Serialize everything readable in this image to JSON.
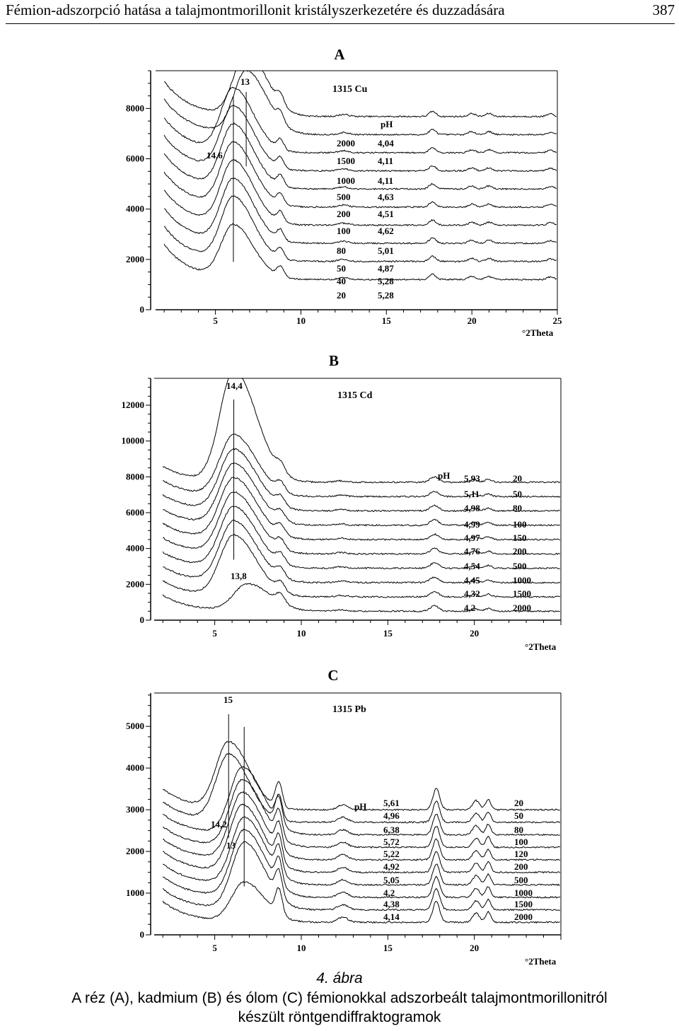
{
  "header": {
    "title": "Fémion-adszorpció hatása a talajmontmorillonit kristályszerkezetére és duzzadására",
    "page_number": "387"
  },
  "chart_data": [
    {
      "type": "line",
      "panel_label": "A",
      "sample_label": "1315 Cu",
      "xlabel": "°2Theta",
      "xlim": [
        1.5,
        25
      ],
      "ylim": [
        0,
        9500
      ],
      "x_ticks": [
        "5",
        "10",
        "15",
        "20",
        "25"
      ],
      "y_ticks": [
        "0",
        "2000",
        "4000",
        "6000",
        "8000"
      ],
      "y_tick_values": [
        0,
        2000,
        4000,
        6000,
        8000
      ],
      "peak_labels": [
        "13",
        "14,6"
      ],
      "ph_header": "pH",
      "concentrations": [
        "2000",
        "1500",
        "1000",
        "500",
        "200",
        "100",
        "80",
        "50",
        "40",
        "20"
      ],
      "ph_values": [
        "4,04",
        "4,11",
        "4,11",
        "4,63",
        "4,51",
        "4,62",
        "5,01",
        "4,87",
        "5,28",
        "5,28"
      ],
      "curves": {
        "count": 10,
        "baseline_start": 1200,
        "step": 720,
        "peak_height": 2500,
        "lowest_peak_height": 2100,
        "peak_pos_top": 6.8,
        "peak_pos_low": 6.05,
        "shift_count": 2,
        "peak_width": 0.9,
        "secondary": [
          [
            8.8,
            0.2,
            400
          ],
          [
            12.5,
            0.3,
            80
          ],
          [
            17.7,
            0.2,
            200
          ],
          [
            20.0,
            0.2,
            120
          ],
          [
            21.0,
            0.2,
            120
          ],
          [
            24.6,
            0.2,
            100
          ]
        ],
        "decay": 1400
      }
    },
    {
      "type": "line",
      "panel_label": "B",
      "sample_label": "1315 Cd",
      "xlabel": "°2Theta",
      "xlim": [
        1.5,
        25
      ],
      "ylim": [
        0,
        13500
      ],
      "x_ticks": [
        "5",
        "10",
        "15",
        "20"
      ],
      "y_ticks": [
        "0",
        "2000",
        "4000",
        "6000",
        "8000",
        "10000",
        "12000"
      ],
      "y_tick_values": [
        0,
        2000,
        4000,
        6000,
        8000,
        10000,
        12000
      ],
      "peak_labels": [
        "14,4",
        "13,8"
      ],
      "ph_header": "pH",
      "concentrations": [
        "20",
        "50",
        "80",
        "100",
        "150",
        "200",
        "500",
        "1000",
        "1500",
        "2000"
      ],
      "ph_values": [
        "5,93",
        "5,11",
        "4,98",
        "4,99",
        "4,97",
        "4,76",
        "4,54",
        "4,45",
        "4,32",
        "4,2"
      ],
      "curves": {
        "count": 10,
        "baseline_start": 500,
        "step": 800,
        "peak_height": 3400,
        "top_peak_height": 6200,
        "lowest_peak_height": 1500,
        "peak_pos_top": 6.1,
        "peak_pos_low": 6.9,
        "shift_count": 1,
        "peak_width": 1.0,
        "secondary": [
          [
            8.8,
            0.25,
            500
          ],
          [
            12.3,
            0.3,
            80
          ],
          [
            17.7,
            0.25,
            300
          ],
          [
            20.0,
            0.2,
            150
          ],
          [
            20.8,
            0.2,
            150
          ]
        ],
        "decay": 900
      }
    },
    {
      "type": "line",
      "panel_label": "C",
      "sample_label": "1315 Pb",
      "xlabel": "°2Theta",
      "xlim": [
        1.5,
        25
      ],
      "ylim": [
        0,
        5800
      ],
      "x_ticks": [
        "5",
        "10",
        "15",
        "20"
      ],
      "y_ticks": [
        "0",
        "1000",
        "2000",
        "3000",
        "4000",
        "5000"
      ],
      "y_tick_values": [
        0,
        1000,
        2000,
        3000,
        4000,
        5000
      ],
      "peak_labels": [
        "15",
        "14,2",
        "13"
      ],
      "ph_header": "pH",
      "concentrations": [
        "20",
        "50",
        "80",
        "100",
        "120",
        "200",
        "500",
        "1000",
        "1500",
        "2000"
      ],
      "ph_values": [
        "5,61",
        "4,96",
        "6,38",
        "5,72",
        "5,22",
        "4,92",
        "5,05",
        "4,2",
        "4,38",
        "4,14"
      ],
      "curves": {
        "count": 10,
        "baseline_start": 300,
        "step": 300,
        "peak_height": 1600,
        "lowest_peak_height": 950,
        "peak_pos_top": 5.8,
        "peak_pos_low": 6.7,
        "shift_count": 2,
        "peak_width": 0.9,
        "secondary": [
          [
            8.7,
            0.2,
            600
          ],
          [
            12.4,
            0.3,
            120
          ],
          [
            17.8,
            0.2,
            500
          ],
          [
            20.1,
            0.2,
            220
          ],
          [
            20.8,
            0.15,
            250
          ]
        ],
        "decay": 500
      }
    }
  ],
  "caption": {
    "number": "4. ábra",
    "line1": "A réz (A), kadmium (B) és ólom (C) fémionokkal adszorbeált talajmontmorillonitról",
    "line2": "készült röntgendiffraktogramok"
  }
}
